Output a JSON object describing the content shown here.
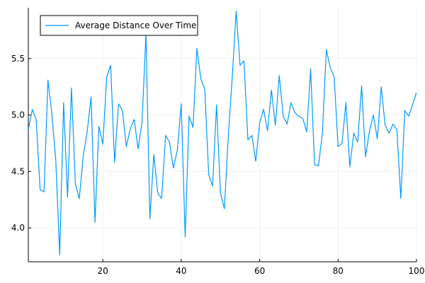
{
  "colors": {
    "series": "#009af9",
    "axis": "#000000",
    "background": "#ffffff"
  },
  "chart_data": {
    "type": "line",
    "title": "",
    "xlabel": "",
    "ylabel": "",
    "xlim": [
      1,
      100
    ],
    "ylim": [
      3.7,
      5.95
    ],
    "grid": true,
    "legend": "top-left",
    "x_ticks": [
      20,
      40,
      60,
      80,
      100
    ],
    "x_tick_labels": [
      "20",
      "40",
      "60",
      "80",
      "100"
    ],
    "y_ticks": [
      4.0,
      4.5,
      5.0,
      5.5
    ],
    "y_tick_labels": [
      "4.0",
      "4.5",
      "5.0",
      "5.5"
    ],
    "series": [
      {
        "name": "Average Distance Over Time",
        "x": [
          1,
          2,
          3,
          4,
          5,
          6,
          7,
          8,
          9,
          10,
          11,
          12,
          13,
          14,
          15,
          16,
          17,
          18,
          19,
          20,
          21,
          22,
          23,
          24,
          25,
          26,
          27,
          28,
          29,
          30,
          31,
          32,
          33,
          34,
          35,
          36,
          37,
          38,
          39,
          40,
          41,
          42,
          43,
          44,
          45,
          46,
          47,
          48,
          49,
          50,
          51,
          52,
          53,
          54,
          55,
          56,
          57,
          58,
          59,
          60,
          61,
          62,
          63,
          64,
          65,
          66,
          67,
          68,
          69,
          70,
          71,
          72,
          73,
          74,
          75,
          76,
          77,
          78,
          79,
          80,
          81,
          82,
          83,
          84,
          85,
          86,
          87,
          88,
          89,
          90,
          91,
          92,
          93,
          94,
          95,
          96,
          97,
          98,
          99,
          100
        ],
        "y": [
          4.87,
          5.05,
          4.96,
          4.34,
          4.32,
          5.31,
          5.01,
          4.6,
          3.76,
          5.11,
          4.27,
          5.24,
          4.39,
          4.26,
          4.64,
          4.85,
          5.16,
          4.05,
          4.9,
          4.74,
          5.34,
          5.44,
          4.58,
          5.1,
          5.04,
          4.72,
          4.88,
          4.96,
          4.7,
          4.94,
          5.72,
          4.08,
          4.65,
          4.31,
          4.26,
          4.82,
          4.76,
          4.53,
          4.69,
          5.1,
          3.92,
          4.99,
          4.89,
          5.59,
          5.32,
          5.23,
          4.47,
          4.37,
          5.09,
          4.31,
          4.17,
          4.81,
          5.33,
          5.92,
          5.44,
          5.48,
          4.78,
          4.82,
          4.59,
          4.93,
          5.05,
          4.86,
          5.22,
          4.91,
          5.35,
          4.99,
          4.92,
          5.11,
          5.02,
          4.99,
          4.97,
          4.85,
          5.41,
          4.56,
          4.55,
          4.84,
          5.58,
          5.42,
          5.34,
          4.72,
          4.75,
          5.11,
          4.54,
          4.84,
          4.76,
          5.26,
          4.63,
          4.86,
          5.0,
          4.79,
          5.25,
          4.91,
          4.84,
          4.92,
          4.87,
          4.26,
          5.04,
          4.99,
          5.09,
          5.2
        ]
      }
    ]
  }
}
